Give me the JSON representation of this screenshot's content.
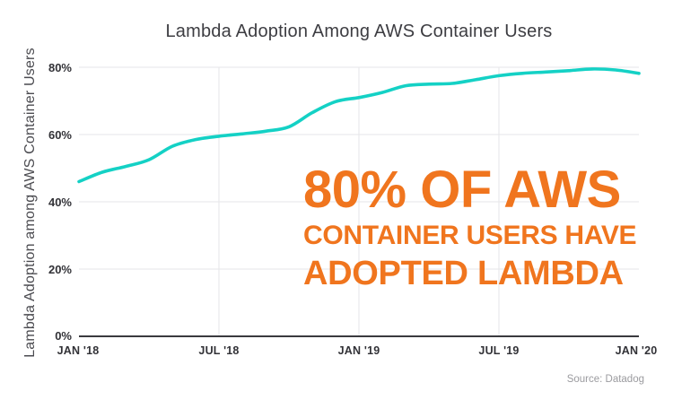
{
  "header": {
    "title": "Lambda Adoption Among AWS Container Users"
  },
  "chart": {
    "y_axis_label": "Lambda Adoption among AWS Container Users",
    "y_ticks": [
      "80%",
      "60%",
      "40%",
      "20%",
      "0%"
    ],
    "x_ticks": [
      "JAN '18",
      "JUL '18",
      "JAN '19",
      "JUL '19",
      "JAN '20"
    ]
  },
  "annotation": {
    "line1": "80% OF AWS",
    "line2": "CONTAINER USERS HAVE",
    "line3": "ADOPTED LAMBDA",
    "color": "#f0751e"
  },
  "footer": {
    "source": "Source: Datadog"
  },
  "chart_data": {
    "type": "line",
    "title": "Lambda Adoption Among AWS Container Users",
    "xlabel": "",
    "ylabel": "Lambda Adoption among AWS Container Users",
    "x": [
      "Jan '18",
      "Feb '18",
      "Mar '18",
      "Apr '18",
      "May '18",
      "Jun '18",
      "Jul '18",
      "Aug '18",
      "Sep '18",
      "Oct '18",
      "Nov '18",
      "Dec '18",
      "Jan '19",
      "Feb '19",
      "Mar '19",
      "Apr '19",
      "May '19",
      "Jun '19",
      "Jul '19",
      "Aug '19",
      "Sep '19",
      "Oct '19",
      "Nov '19",
      "Dec '19",
      "Jan '20"
    ],
    "series": [
      {
        "name": "Lambda adoption among AWS container users (%)",
        "values": [
          46,
          48.8,
          50.5,
          52.5,
          56.5,
          58.5,
          59.5,
          60.2,
          61,
          62.3,
          66.5,
          69.8,
          71,
          72.5,
          74.5,
          75,
          75.2,
          76.3,
          77.5,
          78.2,
          78.6,
          79,
          79.5,
          79.2,
          78.2
        ]
      }
    ],
    "ylim": [
      0,
      80
    ],
    "y_tick_values": [
      0,
      20,
      40,
      60,
      80
    ],
    "x_tick_labels": [
      "JAN '18",
      "JUL '18",
      "JAN '19",
      "JUL '19",
      "JAN '20"
    ],
    "grid": true,
    "legend": "none",
    "line_color": "#14d1c5",
    "annotation_text": "80% OF AWS CONTAINER USERS HAVE ADOPTED LAMBDA",
    "source": "Source: Datadog"
  }
}
